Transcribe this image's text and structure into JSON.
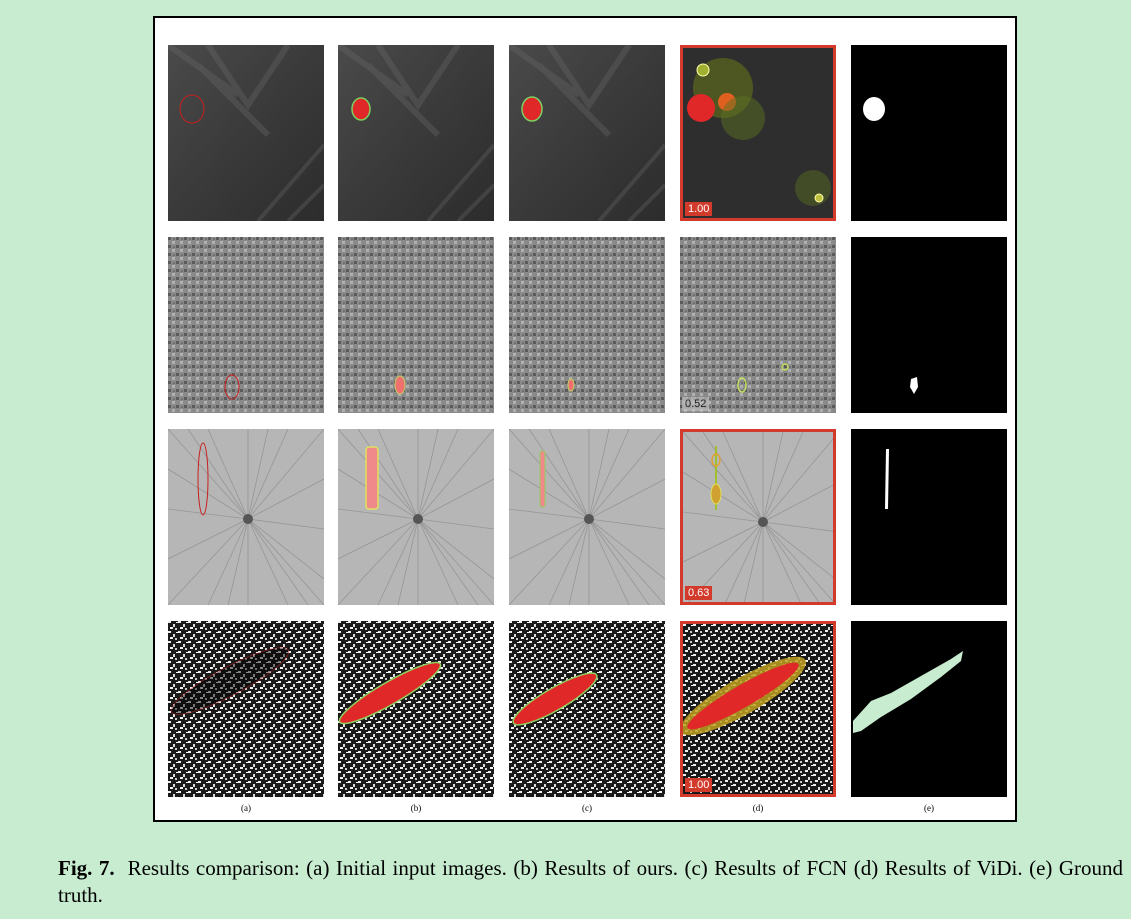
{
  "figure": {
    "column_labels": [
      "(a)",
      "(b)",
      "(c)",
      "(d)",
      "(e)"
    ],
    "vidi_scores": [
      "1.00",
      "0.52",
      "0.63",
      "1.00"
    ],
    "highlight_color": "#d23a2c"
  },
  "caption": {
    "label": "Fig. 7.",
    "text": "Results comparison: (a) Initial input images. (b) Results of ours. (c) Results of FCN (d) Results of ViDi. (e) Ground truth."
  }
}
